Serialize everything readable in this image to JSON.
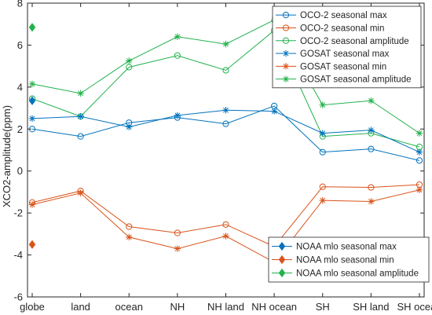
{
  "chart_data": {
    "type": "line",
    "categories": [
      "globe",
      "land",
      "ocean",
      "NH",
      "NH land",
      "NH ocean",
      "SH",
      "SH land",
      "SH ocean"
    ],
    "ylabel": "XCO2-amplitude(ppm)",
    "xlabel": "",
    "ylim": [
      -6,
      8
    ],
    "yticks": [
      -6,
      -4,
      -2,
      0,
      2,
      4,
      6,
      8
    ],
    "grid": false,
    "series": [
      {
        "name": "OCO-2 seasonal max",
        "color": "#0072BD",
        "marker": "circle",
        "values": [
          2.0,
          1.65,
          2.3,
          2.55,
          2.25,
          3.1,
          0.9,
          1.05,
          0.5
        ]
      },
      {
        "name": "OCO-2 seasonal min",
        "color": "#D95319",
        "marker": "circle",
        "values": [
          -1.5,
          -0.95,
          -2.65,
          -2.95,
          -2.55,
          -3.6,
          -0.75,
          -0.78,
          -0.65
        ]
      },
      {
        "name": "OCO-2 seasonal amplitude",
        "color": "#21B24B",
        "marker": "circle",
        "values": [
          3.45,
          2.6,
          4.95,
          5.5,
          4.8,
          6.7,
          1.65,
          1.8,
          1.15
        ]
      },
      {
        "name": "GOSAT seasonal max",
        "color": "#0072BD",
        "marker": "star",
        "values": [
          2.5,
          2.6,
          2.1,
          2.65,
          2.9,
          2.85,
          1.8,
          1.95,
          0.9
        ]
      },
      {
        "name": "GOSAT seasonal min",
        "color": "#D95319",
        "marker": "star",
        "values": [
          -1.6,
          -1.05,
          -3.15,
          -3.7,
          -3.1,
          -4.35,
          -1.4,
          -1.45,
          -0.9
        ]
      },
      {
        "name": "GOSAT seasonal amplitude",
        "color": "#21B24B",
        "marker": "star",
        "values": [
          4.15,
          3.7,
          5.25,
          6.4,
          6.05,
          7.2,
          3.15,
          3.35,
          1.8
        ]
      }
    ],
    "points": [
      {
        "name": "NOAA mlo seasonal max",
        "color": "#0072BD",
        "marker": "diamond",
        "category": "globe",
        "value": 3.35
      },
      {
        "name": "NOAA mlo seasonal min",
        "color": "#D95319",
        "marker": "diamond",
        "category": "globe",
        "value": -3.5
      },
      {
        "name": "NOAA mlo seasonal amplitude",
        "color": "#21B24B",
        "marker": "diamond",
        "category": "globe",
        "value": 6.85
      }
    ],
    "legends": [
      {
        "placement": "top-right",
        "entries": [
          "OCO-2 seasonal max",
          "OCO-2 seasonal min",
          "OCO-2 seasonal amplitude",
          "GOSAT seasonal max",
          "GOSAT seasonal min",
          "GOSAT seasonal amplitude"
        ]
      },
      {
        "placement": "bottom-right",
        "entries": [
          "NOAA mlo seasonal max",
          "NOAA mlo seasonal min",
          "NOAA mlo seasonal amplitude"
        ]
      }
    ]
  }
}
